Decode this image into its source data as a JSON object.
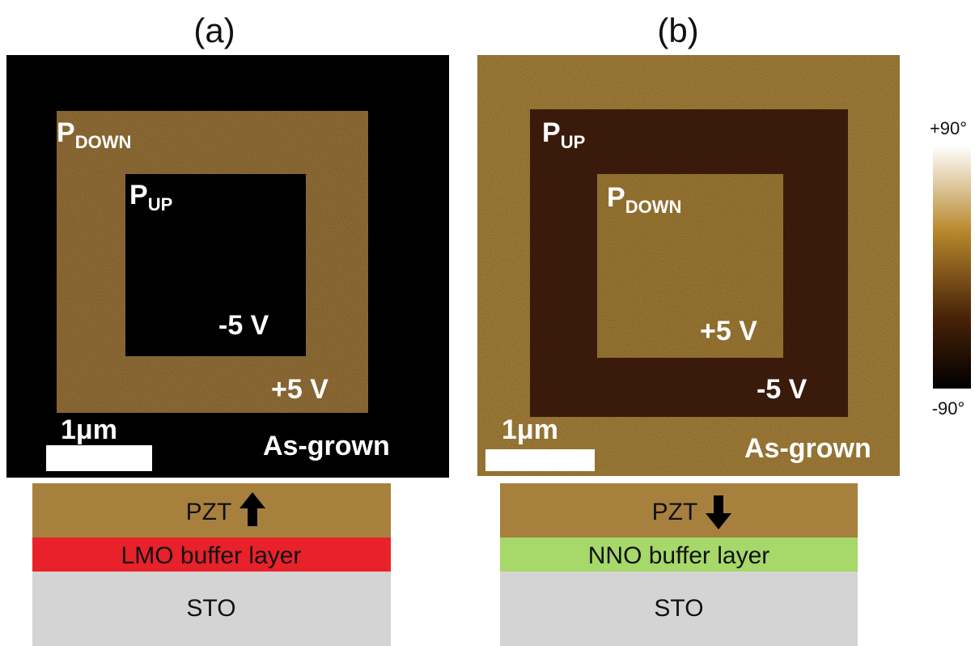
{
  "panels": [
    {
      "label": "(a)",
      "annotations": [
        {
          "main": "P",
          "sub": "DOWN"
        },
        {
          "main": "P",
          "sub": "UP"
        }
      ],
      "inner_voltage": "-5 V",
      "outer_voltage": "+5 V",
      "scale_bar": "1μm",
      "state": "As-grown",
      "layers": [
        "PZT",
        "LMO buffer layer",
        "STO"
      ]
    },
    {
      "label": "(b)",
      "annotations": [
        {
          "main": "P",
          "sub": "UP"
        },
        {
          "main": "P",
          "sub": "DOWN"
        }
      ],
      "inner_voltage": "+5 V",
      "outer_voltage": "-5 V",
      "scale_bar": "1μm",
      "state": "As-grown",
      "layers": [
        "PZT",
        "NNO buffer layer",
        "STO"
      ]
    }
  ],
  "colorbar": {
    "max_label": "+90°",
    "min_label": "-90°"
  }
}
